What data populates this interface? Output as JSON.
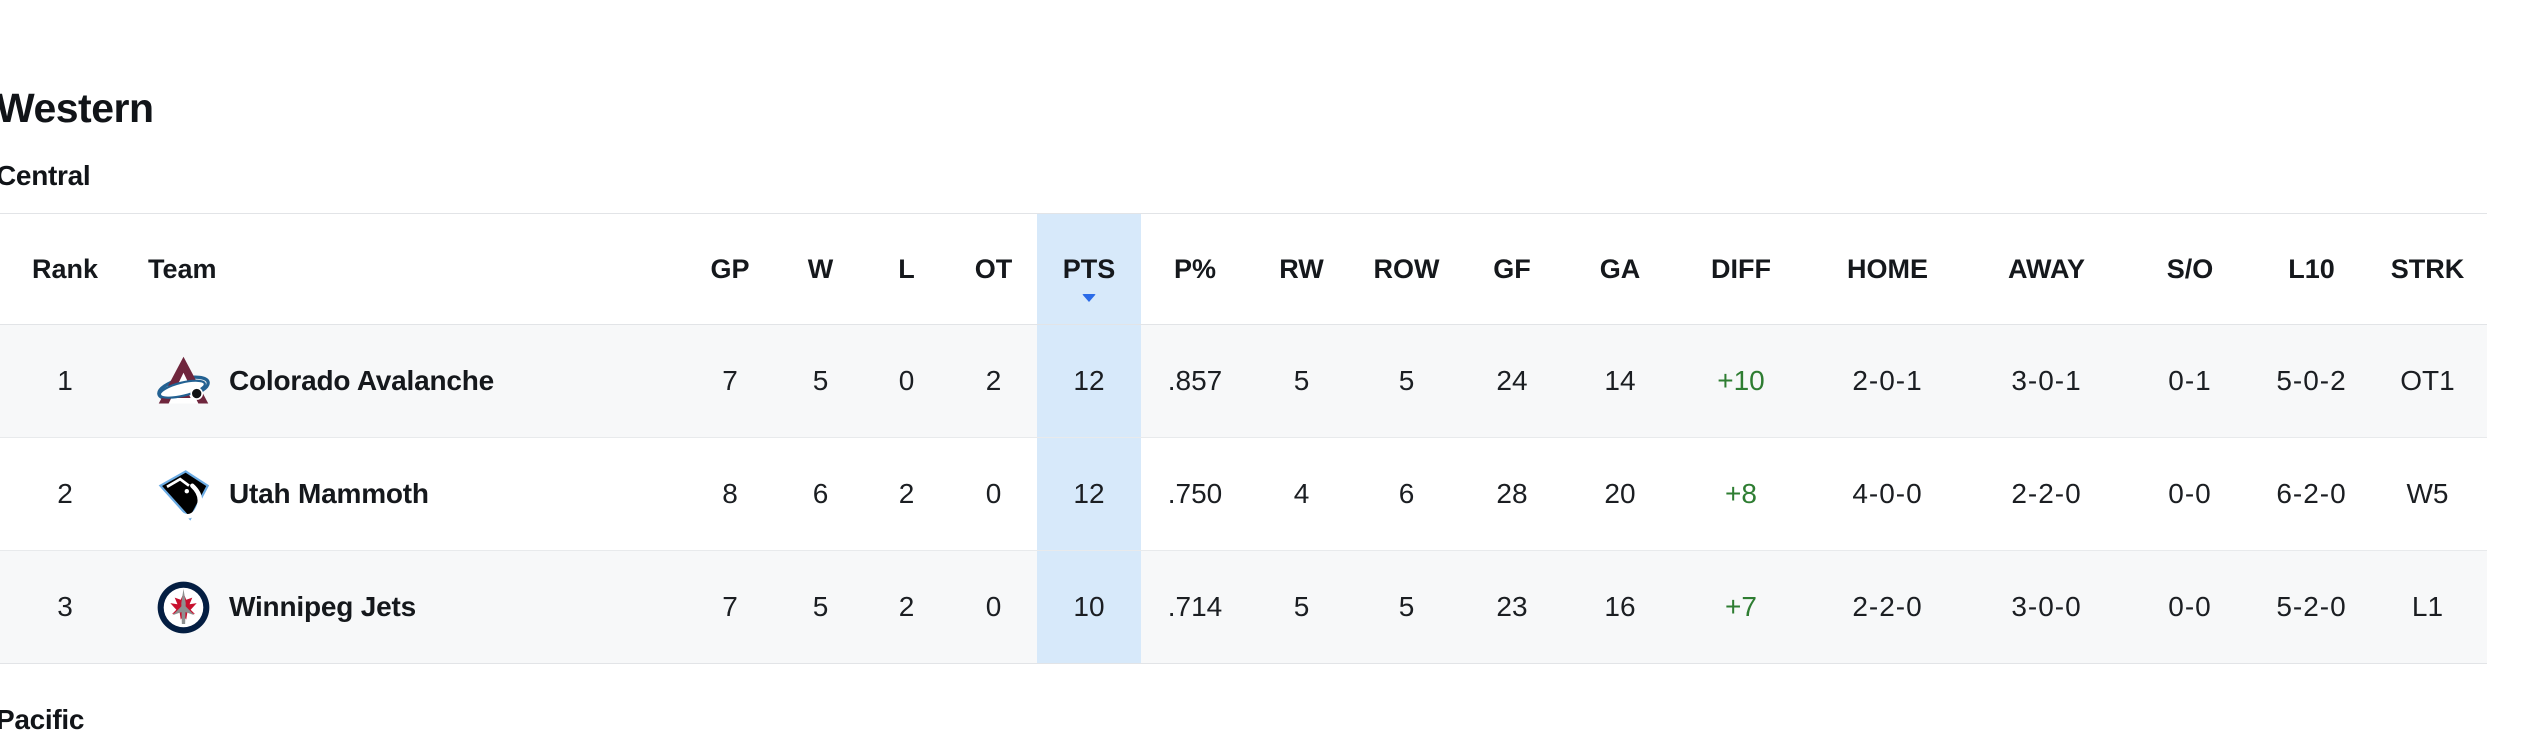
{
  "page": {
    "conference_heading": "Western",
    "division_heading": "Central",
    "next_division_heading": "Pacific"
  },
  "colors": {
    "pts_column_highlight": "#d7e9fa",
    "sort_arrow_blue": "#2b6be8",
    "diff_positive_green": "#2e7d32",
    "row_stripe": "#f7f8f9",
    "table_border": "#e2e4e7"
  },
  "table": {
    "sorted_column": "pts",
    "sort_direction": "descending",
    "columns": [
      {
        "key": "rank",
        "label": "Rank"
      },
      {
        "key": "team",
        "label": "Team"
      },
      {
        "key": "gp",
        "label": "GP"
      },
      {
        "key": "w",
        "label": "W"
      },
      {
        "key": "l",
        "label": "L"
      },
      {
        "key": "ot",
        "label": "OT"
      },
      {
        "key": "pts",
        "label": "PTS"
      },
      {
        "key": "ppct",
        "label": "P%"
      },
      {
        "key": "rw",
        "label": "RW"
      },
      {
        "key": "row",
        "label": "ROW"
      },
      {
        "key": "gf",
        "label": "GF"
      },
      {
        "key": "ga",
        "label": "GA"
      },
      {
        "key": "diff",
        "label": "DIFF"
      },
      {
        "key": "home",
        "label": "HOME"
      },
      {
        "key": "away",
        "label": "AWAY"
      },
      {
        "key": "so",
        "label": "S/O"
      },
      {
        "key": "l10",
        "label": "L10"
      },
      {
        "key": "strk",
        "label": "STRK"
      }
    ],
    "rows": [
      {
        "rank": "1",
        "team": {
          "name": "Colorado Avalanche",
          "logo": "colorado-avalanche-logo"
        },
        "stats": {
          "gp": "7",
          "w": "5",
          "l": "0",
          "ot": "2",
          "pts": "12",
          "ppct": ".857",
          "rw": "5",
          "row": "5",
          "gf": "24",
          "ga": "14",
          "diff": "+10",
          "home": "2-0-1",
          "away": "3-0-1",
          "so": "0-1",
          "l10": "5-0-2",
          "strk": "OT1"
        }
      },
      {
        "rank": "2",
        "team": {
          "name": "Utah Mammoth",
          "logo": "utah-mammoth-logo"
        },
        "stats": {
          "gp": "8",
          "w": "6",
          "l": "2",
          "ot": "0",
          "pts": "12",
          "ppct": ".750",
          "rw": "4",
          "row": "6",
          "gf": "28",
          "ga": "20",
          "diff": "+8",
          "home": "4-0-0",
          "away": "2-2-0",
          "so": "0-0",
          "l10": "6-2-0",
          "strk": "W5"
        }
      },
      {
        "rank": "3",
        "team": {
          "name": "Winnipeg Jets",
          "logo": "winnipeg-jets-logo"
        },
        "stats": {
          "gp": "7",
          "w": "5",
          "l": "2",
          "ot": "0",
          "pts": "10",
          "ppct": ".714",
          "rw": "5",
          "row": "5",
          "gf": "23",
          "ga": "16",
          "diff": "+7",
          "home": "2-2-0",
          "away": "3-0-0",
          "so": "0-0",
          "l10": "5-2-0",
          "strk": "L1"
        }
      }
    ]
  }
}
